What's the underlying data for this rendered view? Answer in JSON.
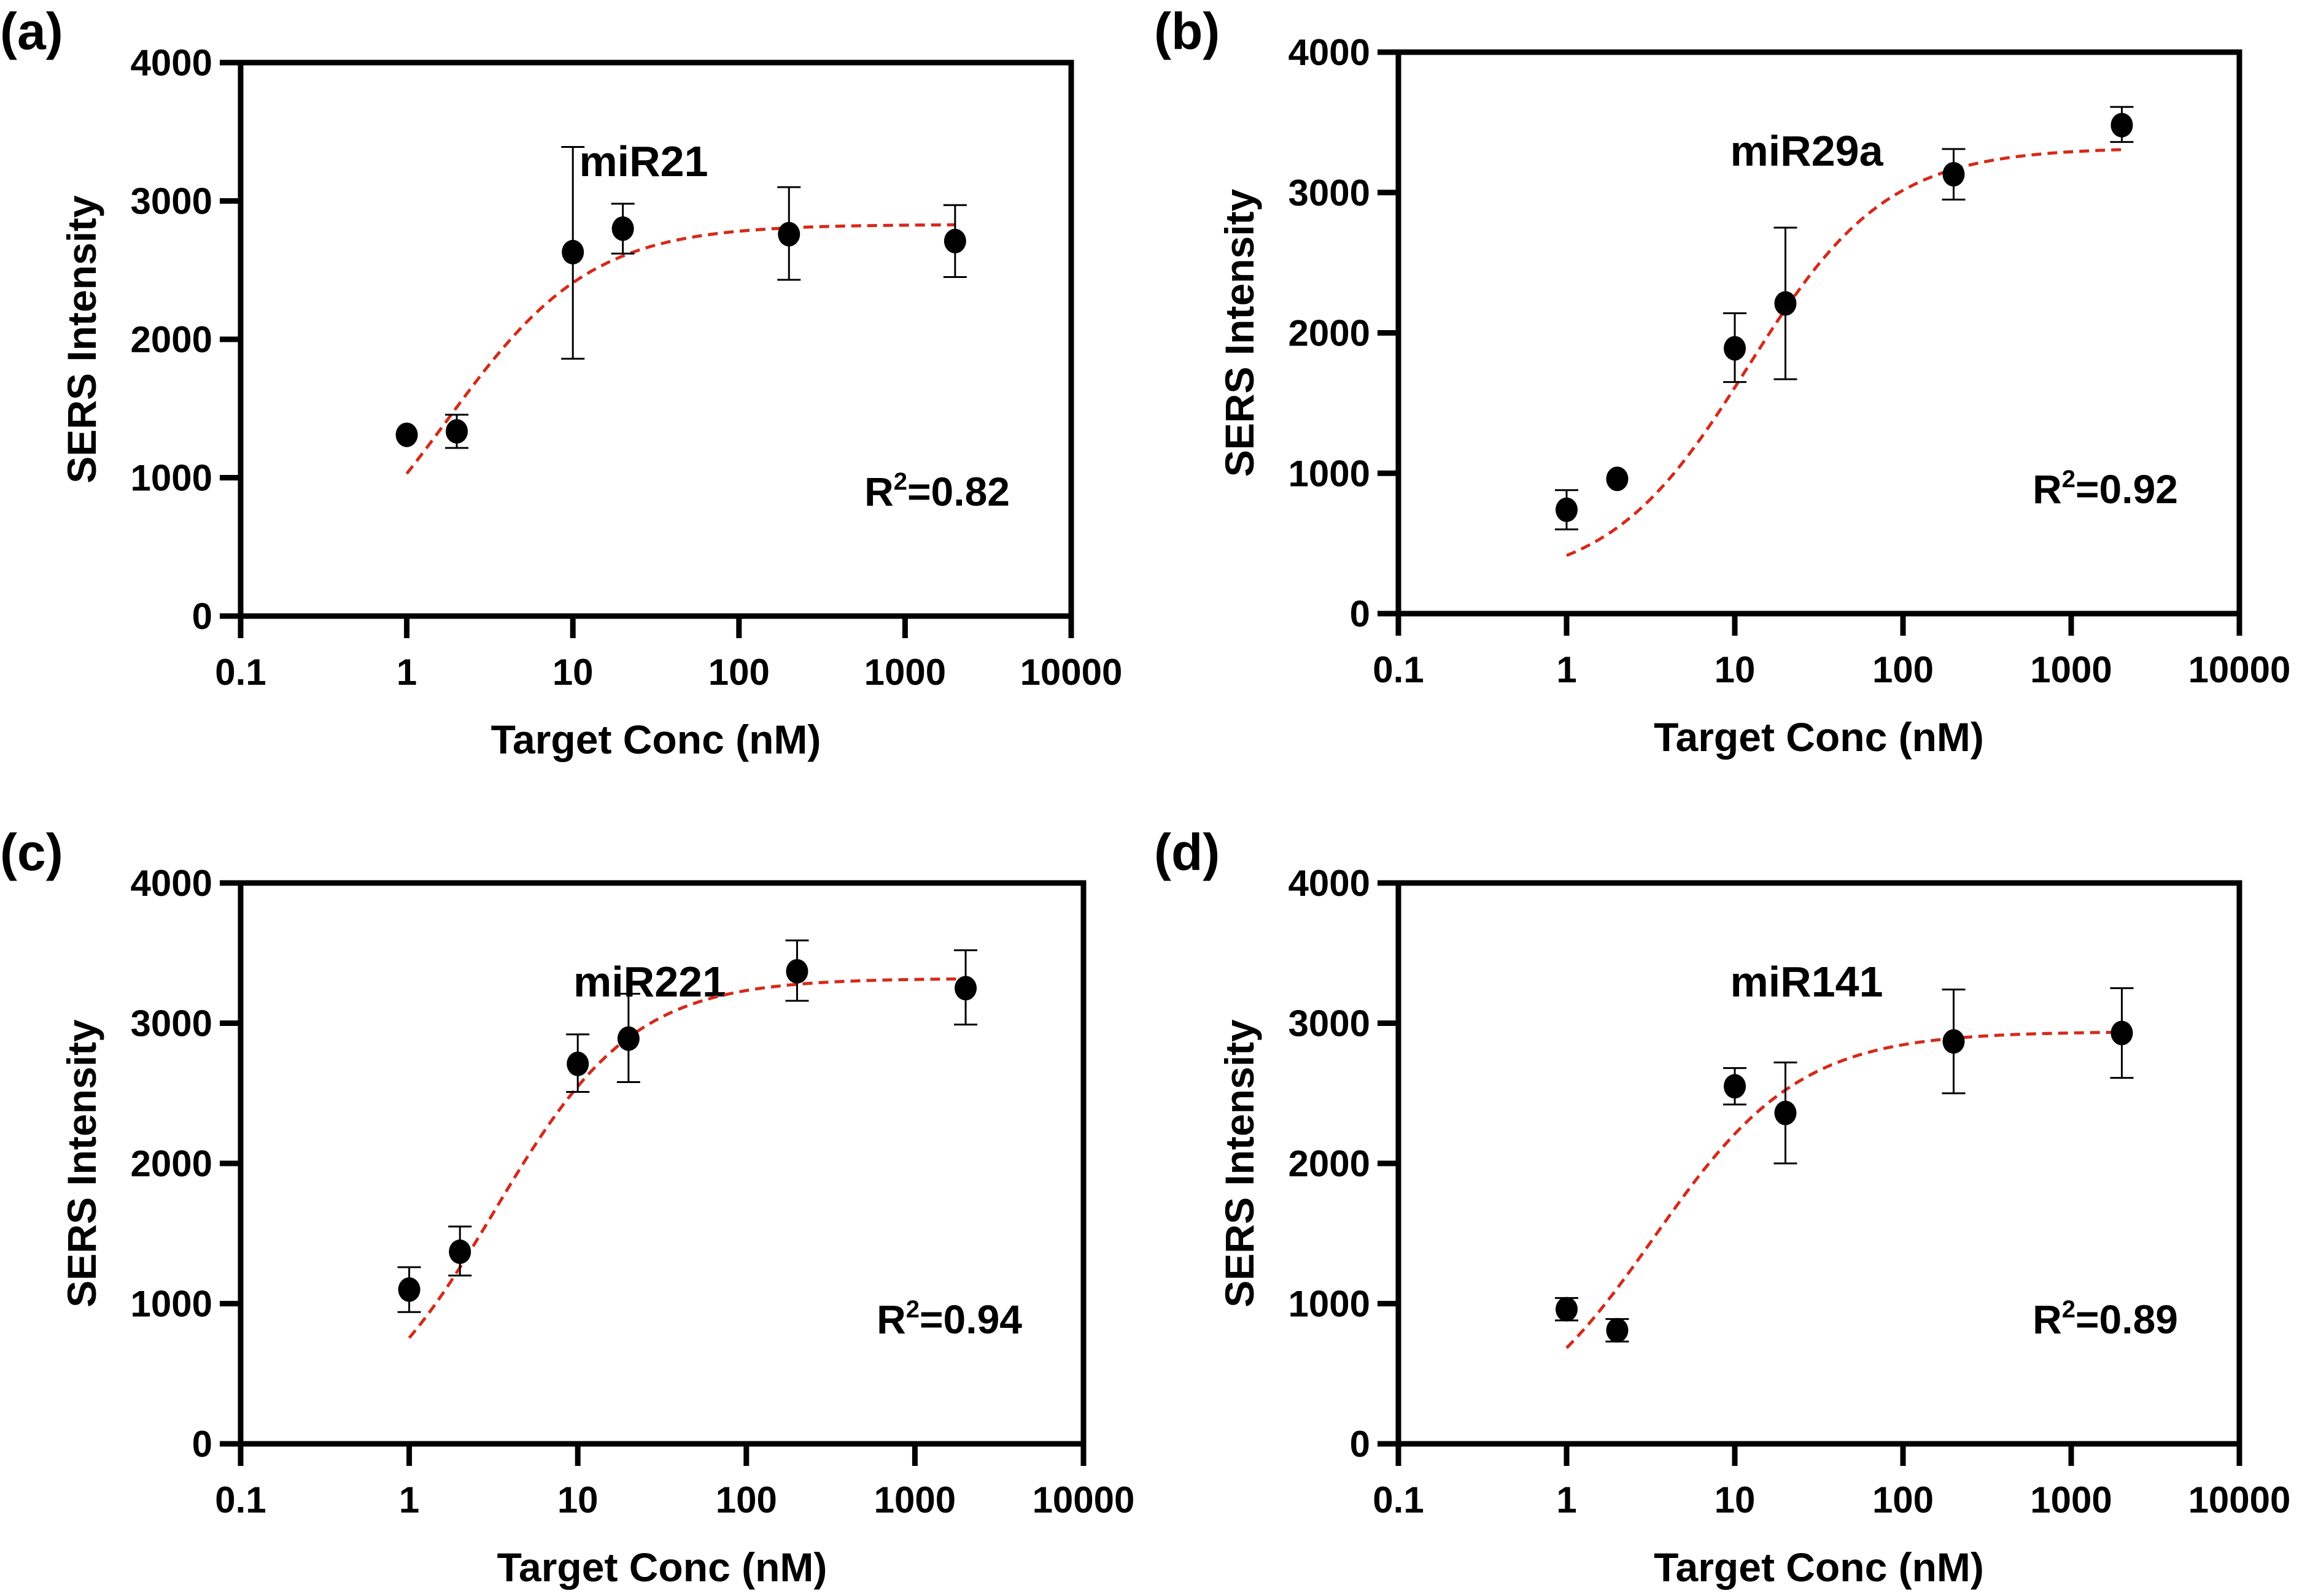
{
  "figure": {
    "colors": {
      "marker": "#000000",
      "fit_curve": "#d42a1a",
      "axis": "#000000",
      "background": "#ffffff"
    }
  },
  "chart_data": [
    {
      "panel": "(a)",
      "type": "scatter",
      "title": "miR21",
      "xlabel": "Target Conc (nM)",
      "ylabel": "SERS Intensity",
      "xscale": "log",
      "xlim": [
        0.1,
        10000
      ],
      "ylim": [
        0,
        4000
      ],
      "xticks": [
        "0.1",
        "1",
        "10",
        "100",
        "1000",
        "10000"
      ],
      "yticks": [
        "0",
        "1000",
        "2000",
        "3000",
        "4000"
      ],
      "grid": false,
      "annotation": {
        "text": "R",
        "sup": "2",
        "value": "=0.82"
      },
      "points": [
        {
          "x": 1,
          "y": 1310,
          "err_low": 1310,
          "err_high": 1310
        },
        {
          "x": 2,
          "y": 1335,
          "err_low": 1215,
          "err_high": 1455
        },
        {
          "x": 10,
          "y": 2630,
          "err_low": 1860,
          "err_high": 3390
        },
        {
          "x": 20,
          "y": 2800,
          "err_low": 2620,
          "err_high": 2980
        },
        {
          "x": 200,
          "y": 2760,
          "err_low": 2430,
          "err_high": 3100
        },
        {
          "x": 2000,
          "y": 2710,
          "err_low": 2450,
          "err_high": 2970
        }
      ],
      "fit": {
        "model": "4PL sigmoid (dashed)",
        "bottom": 0,
        "top": 2830,
        "ec50": 1.75,
        "hill": 1.0,
        "x_range": [
          1,
          2000
        ]
      }
    },
    {
      "panel": "(b)",
      "type": "scatter",
      "title": "miR29a",
      "xlabel": "Target Conc (nM)",
      "ylabel": "SERS Intensity",
      "xscale": "log",
      "xlim": [
        0.1,
        10000
      ],
      "ylim": [
        0,
        4000
      ],
      "xticks": [
        "0.1",
        "1",
        "10",
        "100",
        "1000",
        "10000"
      ],
      "yticks": [
        "0",
        "1000",
        "2000",
        "3000",
        "4000"
      ],
      "grid": false,
      "annotation": {
        "text": "R",
        "sup": "2",
        "value": "=0.92"
      },
      "points": [
        {
          "x": 1,
          "y": 740,
          "err_low": 600,
          "err_high": 880
        },
        {
          "x": 2,
          "y": 960,
          "err_low": 960,
          "err_high": 960
        },
        {
          "x": 10,
          "y": 1890,
          "err_low": 1650,
          "err_high": 2140
        },
        {
          "x": 20,
          "y": 2210,
          "err_low": 1670,
          "err_high": 2750
        },
        {
          "x": 200,
          "y": 3130,
          "err_low": 2950,
          "err_high": 3310
        },
        {
          "x": 2000,
          "y": 3480,
          "err_low": 3360,
          "err_high": 3610
        }
      ],
      "fit": {
        "model": "4PL sigmoid (dashed)",
        "bottom": 200,
        "top": 3320,
        "ec50": 12,
        "hill": 1.05,
        "x_range": [
          1,
          2000
        ]
      }
    },
    {
      "panel": "(c)",
      "type": "scatter",
      "title": "miR221",
      "xlabel": "Target Conc (nM)",
      "ylabel": "SERS Intensity",
      "xscale": "log",
      "xlim": [
        0.1,
        10000
      ],
      "ylim": [
        0,
        4000
      ],
      "xticks": [
        "0.1",
        "1",
        "10",
        "100",
        "1000",
        "10000"
      ],
      "yticks": [
        "0",
        "1000",
        "2000",
        "3000",
        "4000"
      ],
      "grid": false,
      "annotation": {
        "text": "R",
        "sup": "2",
        "value": "=0.94"
      },
      "points": [
        {
          "x": 1,
          "y": 1100,
          "err_low": 940,
          "err_high": 1260
        },
        {
          "x": 2,
          "y": 1370,
          "err_low": 1200,
          "err_high": 1550
        },
        {
          "x": 10,
          "y": 2710,
          "err_low": 2510,
          "err_high": 2920
        },
        {
          "x": 20,
          "y": 2890,
          "err_low": 2580,
          "err_high": 3210
        },
        {
          "x": 200,
          "y": 3370,
          "err_low": 3160,
          "err_high": 3590
        },
        {
          "x": 2000,
          "y": 3250,
          "err_low": 2990,
          "err_high": 3520
        }
      ],
      "fit": {
        "model": "4PL sigmoid (dashed)",
        "bottom": 0,
        "top": 3320,
        "ec50": 3.2,
        "hill": 1.05,
        "x_range": [
          1,
          2000
        ]
      }
    },
    {
      "panel": "(d)",
      "type": "scatter",
      "title": "miR141",
      "xlabel": "Target Conc (nM)",
      "ylabel": "SERS Intensity",
      "xscale": "log",
      "xlim": [
        0.1,
        10000
      ],
      "ylim": [
        0,
        4000
      ],
      "xticks": [
        "0.1",
        "1",
        "10",
        "100",
        "1000",
        "10000"
      ],
      "yticks": [
        "0",
        "1000",
        "2000",
        "3000",
        "4000"
      ],
      "grid": false,
      "annotation": {
        "text": "R",
        "sup": "2",
        "value": "=0.89"
      },
      "points": [
        {
          "x": 1,
          "y": 960,
          "err_low": 880,
          "err_high": 1040
        },
        {
          "x": 2,
          "y": 810,
          "err_low": 730,
          "err_high": 890
        },
        {
          "x": 10,
          "y": 2550,
          "err_low": 2420,
          "err_high": 2680
        },
        {
          "x": 20,
          "y": 2360,
          "err_low": 2000,
          "err_high": 2720
        },
        {
          "x": 200,
          "y": 2870,
          "err_low": 2500,
          "err_high": 3240
        },
        {
          "x": 2000,
          "y": 2930,
          "err_low": 2610,
          "err_high": 3250
        }
      ],
      "fit": {
        "model": "4PL sigmoid (dashed)",
        "bottom": 0,
        "top": 2940,
        "ec50": 3.3,
        "hill": 1.0,
        "x_range": [
          1,
          2000
        ]
      }
    }
  ]
}
